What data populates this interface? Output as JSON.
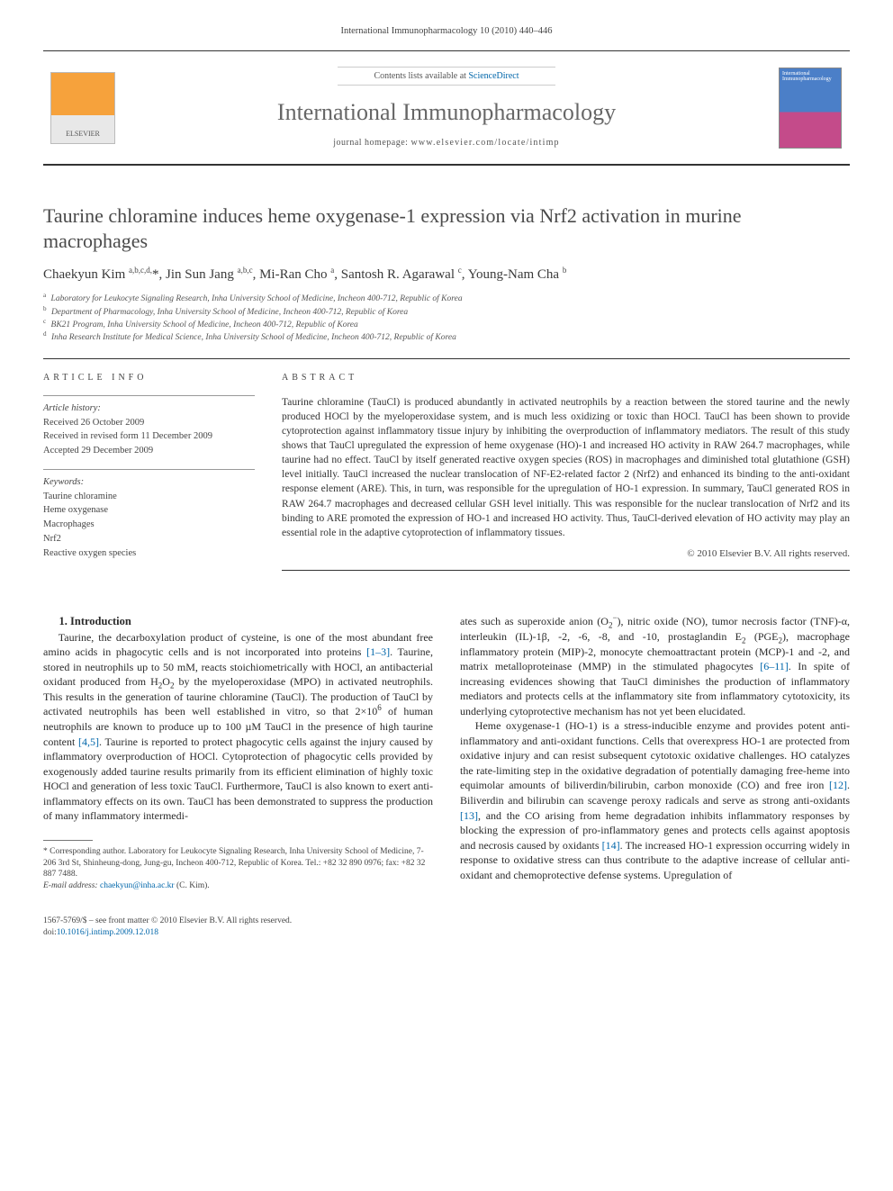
{
  "running_head": "International Immunopharmacology 10 (2010) 440–446",
  "masthead": {
    "contents_prefix": "Contents lists available at ",
    "contents_link": "ScienceDirect",
    "journal_name": "International Immunopharmacology",
    "homepage_label": "journal homepage: ",
    "homepage_url": "www.elsevier.com/locate/intimp",
    "publisher_logo_text": "ELSEVIER",
    "cover_text": "International Immunopharmacology"
  },
  "article": {
    "title": "Taurine chloramine induces heme oxygenase-1 expression via Nrf2 activation in murine macrophages",
    "authors_html": "Chaekyun Kim <sup>a,b,c,d,</sup><span class='star'>*</span>, Jin Sun Jang <sup>a,b,c</sup>, Mi-Ran Cho <sup>a</sup>, Santosh R. Agarawal <sup>c</sup>, Young-Nam Cha <sup>b</sup>",
    "affiliations": [
      {
        "key": "a",
        "text": "Laboratory for Leukocyte Signaling Research, Inha University School of Medicine, Incheon 400-712, Republic of Korea"
      },
      {
        "key": "b",
        "text": "Department of Pharmacology, Inha University School of Medicine, Incheon 400-712, Republic of Korea"
      },
      {
        "key": "c",
        "text": "BK21 Program, Inha University School of Medicine, Incheon 400-712, Republic of Korea"
      },
      {
        "key": "d",
        "text": "Inha Research Institute for Medical Science, Inha University School of Medicine, Incheon 400-712, Republic of Korea"
      }
    ]
  },
  "info": {
    "heading": "ARTICLE INFO",
    "history_title": "Article history:",
    "history_lines": [
      "Received 26 October 2009",
      "Received in revised form 11 December 2009",
      "Accepted 29 December 2009"
    ],
    "keywords_title": "Keywords:",
    "keywords": [
      "Taurine chloramine",
      "Heme oxygenase",
      "Macrophages",
      "Nrf2",
      "Reactive oxygen species"
    ]
  },
  "abstract": {
    "heading": "ABSTRACT",
    "text": "Taurine chloramine (TauCl) is produced abundantly in activated neutrophils by a reaction between the stored taurine and the newly produced HOCl by the myeloperoxidase system, and is much less oxidizing or toxic than HOCl. TauCl has been shown to provide cytoprotection against inflammatory tissue injury by inhibiting the overproduction of inflammatory mediators. The result of this study shows that TauCl upregulated the expression of heme oxygenase (HO)-1 and increased HO activity in RAW 264.7 macrophages, while taurine had no effect. TauCl by itself generated reactive oxygen species (ROS) in macrophages and diminished total glutathione (GSH) level initially. TauCl increased the nuclear translocation of NF-E2-related factor 2 (Nrf2) and enhanced its binding to the anti-oxidant response element (ARE). This, in turn, was responsible for the upregulation of HO-1 expression. In summary, TauCl generated ROS in RAW 264.7 macrophages and decreased cellular GSH level initially. This was responsible for the nuclear translocation of Nrf2 and its binding to ARE promoted the expression of HO-1 and increased HO activity. Thus, TauCl-derived elevation of HO activity may play an essential role in the adaptive cytoprotection of inflammatory tissues.",
    "copyright": "© 2010 Elsevier B.V. All rights reserved."
  },
  "body": {
    "section_heading": "1. Introduction",
    "col1_p1_html": "Taurine, the decarboxylation product of cysteine, is one of the most abundant free amino acids in phagocytic cells and is not incorporated into proteins <span class='ref'>[1–3]</span>. Taurine, stored in neutrophils up to 50 mM, reacts stoichiometrically with HOCl, an antibacterial oxidant produced from H<sub>2</sub>O<sub>2</sub> by the myeloperoxidase (MPO) in activated neutrophils. This results in the generation of taurine chloramine (TauCl). The production of TauCl by activated neutrophils has been well established in vitro, so that 2×10<sup>6</sup> of human neutrophils are known to produce up to 100 µM TauCl in the presence of high taurine content <span class='ref'>[4,5]</span>. Taurine is reported to protect phagocytic cells against the injury caused by inflammatory overproduction of HOCl. Cytoprotection of phagocytic cells provided by exogenously added taurine results primarily from its efficient elimination of highly toxic HOCl and generation of less toxic TauCl. Furthermore, TauCl is also known to exert anti-inflammatory effects on its own. TauCl has been demonstrated to suppress the production of many inflammatory intermedi-",
    "col2_p1_html": "ates such as superoxide anion (O<sub>2</sub><sup>−</sup>), nitric oxide (NO), tumor necrosis factor (TNF)-α, interleukin (IL)-1β, -2, -6, -8, and -10, prostaglandin E<sub>2</sub> (PGE<sub>2</sub>), macrophage inflammatory protein (MIP)-2, monocyte chemoattractant protein (MCP)-1 and -2, and matrix metalloproteinase (MMP) in the stimulated phagocytes <span class='ref'>[6–11]</span>. In spite of increasing evidences showing that TauCl diminishes the production of inflammatory mediators and protects cells at the inflammatory site from inflammatory cytotoxicity, its underlying cytoprotective mechanism has not yet been elucidated.",
    "col2_p2_html": "Heme oxygenase-1 (HO-1) is a stress-inducible enzyme and provides potent anti-inflammatory and anti-oxidant functions. Cells that overexpress HO-1 are protected from oxidative injury and can resist subsequent cytotoxic oxidative challenges. HO catalyzes the rate-limiting step in the oxidative degradation of potentially damaging free-heme into equimolar amounts of biliverdin/bilirubin, carbon monoxide (CO) and free iron <span class='ref'>[12]</span>. Biliverdin and bilirubin can scavenge peroxy radicals and serve as strong anti-oxidants <span class='ref'>[13]</span>, and the CO arising from heme degradation inhibits inflammatory responses by blocking the expression of pro-inflammatory genes and protects cells against apoptosis and necrosis caused by oxidants <span class='ref'>[14]</span>. The increased HO-1 expression occurring widely in response to oxidative stress can thus contribute to the adaptive increase of cellular anti-oxidant and chemoprotective defense systems. Upregulation of"
  },
  "footnote": {
    "corr_html": "* Corresponding author. Laboratory for Leukocyte Signaling Research, Inha University School of Medicine, 7-206 3rd St, Shinheung-dong, Jung-gu, Incheon 400-712, Republic of Korea. Tel.: +82 32 890 0976; fax: +82 32 887 7488.",
    "email_label": "E-mail address: ",
    "email": "chaekyun@inha.ac.kr",
    "email_suffix": " (C. Kim)."
  },
  "doi": {
    "line1": "1567-5769/$ – see front matter © 2010 Elsevier B.V. All rights reserved.",
    "line2_prefix": "doi:",
    "doi": "10.1016/j.intimp.2009.12.018"
  },
  "colors": {
    "link": "#0066aa",
    "text": "#2a2a2a",
    "muted": "#555555",
    "rule": "#333333"
  }
}
